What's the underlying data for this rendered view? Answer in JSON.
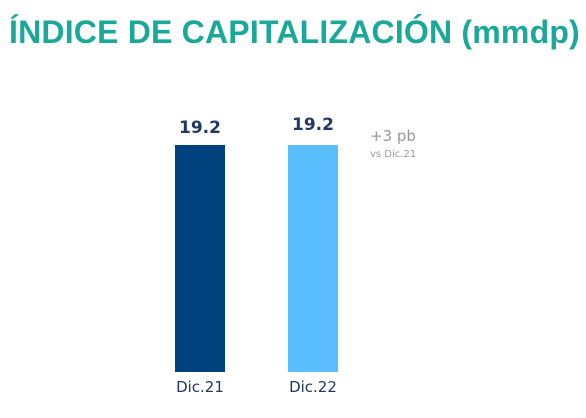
{
  "title": "ÍNDICE DE CAPITALIZACIÓN (mmdp)",
  "annotation": {
    "main": "+3 pb",
    "sub": "vs Dic.21"
  },
  "colors": {
    "title": "#1aa89a",
    "bar_1": "#00427e",
    "bar_2": "#5bbfff",
    "label_1": "#1f3864",
    "label_2": "#1f3864"
  },
  "chart_data": {
    "type": "bar",
    "title": "ÍNDICE DE CAPITALIZACIÓN (mmdp)",
    "categories": [
      "Dic.21",
      "Dic.22"
    ],
    "values": [
      19.2,
      19.2
    ],
    "value_labels": [
      "19.2",
      "19.2"
    ],
    "xlabel": "",
    "ylabel": "",
    "ylim": [
      0,
      19.2
    ],
    "grid": false,
    "legend": "none"
  }
}
